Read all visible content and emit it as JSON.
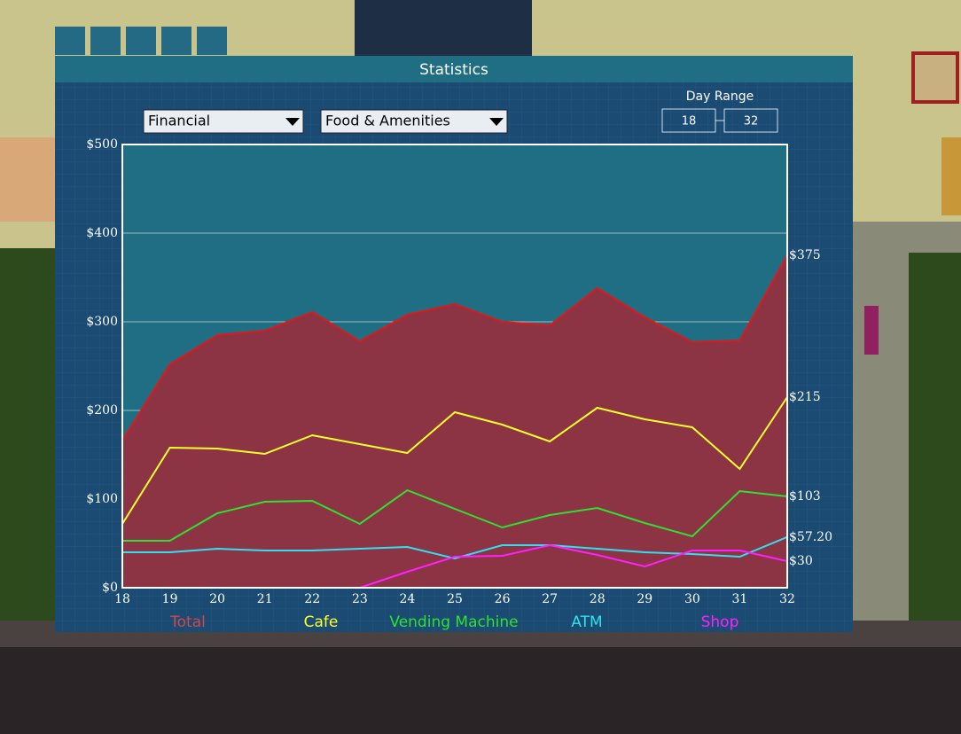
{
  "window_title": "Statistics",
  "dropdowns": [
    "Financial",
    "Food & Amenities"
  ],
  "day_range": {
    "label": "Day Range",
    "from": "18",
    "to": "32"
  },
  "chart_data": {
    "type": "line",
    "x": [
      18,
      19,
      20,
      21,
      22,
      23,
      24,
      25,
      26,
      27,
      28,
      29,
      30,
      31,
      32
    ],
    "xlim": [
      18,
      32
    ],
    "xticks": [
      18,
      19,
      20,
      21,
      22,
      23,
      24,
      25,
      26,
      27,
      28,
      29,
      30,
      31,
      32
    ],
    "ylim": [
      0,
      500
    ],
    "yticks": [
      {
        "value": 0,
        "label": "$0"
      },
      {
        "value": 100,
        "label": "$100"
      },
      {
        "value": 200,
        "label": "$200"
      },
      {
        "value": 300,
        "label": "$300"
      },
      {
        "value": 400,
        "label": "$400"
      },
      {
        "value": 500,
        "label": "$500"
      }
    ],
    "grid": true,
    "area_series": 0,
    "area_color": "#8c3444",
    "series": [
      {
        "name": "Total",
        "color": "#e01818",
        "legend_color": "#d04848",
        "values": [
          166,
          252,
          285,
          290,
          311,
          278,
          308,
          320,
          300,
          296,
          338,
          305,
          277,
          279,
          375
        ],
        "value_labels": [
          null,
          null,
          null,
          null,
          null,
          null,
          null,
          null,
          null,
          null,
          null,
          null,
          null,
          null,
          "$375"
        ]
      },
      {
        "name": "Cafe",
        "color": "#ffff30",
        "legend_color": "#ffff30",
        "values": [
          72,
          158,
          157,
          151,
          172,
          162,
          152,
          198,
          184,
          165,
          203,
          190,
          181,
          134,
          215
        ],
        "value_labels": [
          null,
          null,
          null,
          null,
          null,
          null,
          null,
          null,
          null,
          null,
          null,
          null,
          null,
          null,
          "$215"
        ]
      },
      {
        "name": "Vending Machine",
        "color": "#30e030",
        "legend_color": "#30e030",
        "values": [
          53,
          53,
          84,
          97,
          98,
          72,
          110,
          89,
          68,
          82,
          90,
          73,
          58,
          109,
          103
        ],
        "value_labels": [
          null,
          null,
          null,
          null,
          null,
          null,
          null,
          null,
          null,
          null,
          null,
          null,
          null,
          null,
          "$103"
        ]
      },
      {
        "name": "ATM",
        "color": "#30e0f0",
        "legend_color": "#30e0f0",
        "values": [
          40,
          40,
          44,
          42,
          42,
          44,
          46,
          33,
          48,
          48,
          44,
          40,
          38,
          35,
          57.2
        ],
        "value_labels": [
          null,
          null,
          null,
          null,
          null,
          null,
          null,
          null,
          null,
          null,
          null,
          null,
          null,
          null,
          "$57.20"
        ]
      },
      {
        "name": "Shop",
        "color": "#ff20ff",
        "legend_color": "#ff20ff",
        "values": [
          null,
          null,
          null,
          null,
          null,
          0,
          18,
          35,
          36,
          48,
          37,
          24,
          42,
          42,
          30
        ],
        "value_labels": [
          null,
          null,
          null,
          null,
          null,
          null,
          null,
          null,
          null,
          null,
          null,
          null,
          null,
          null,
          "$30"
        ]
      }
    ]
  }
}
